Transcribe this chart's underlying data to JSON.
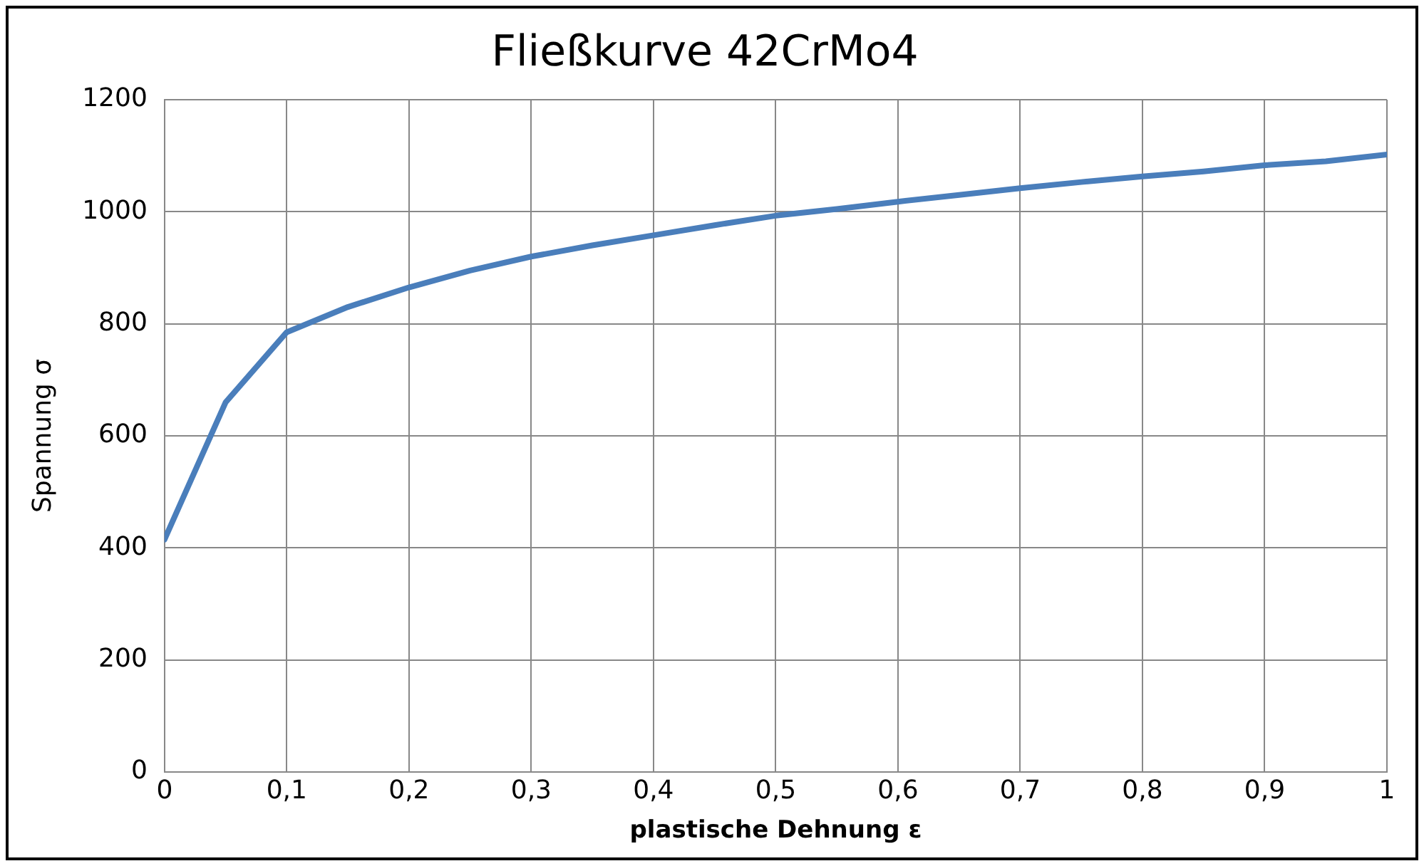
{
  "chart_data": {
    "type": "line",
    "title": "Fließkurve 42CrMo4",
    "xlabel": "plastische Dehnung ε",
    "ylabel": "Spannung σ",
    "x": [
      0,
      0.05,
      0.1,
      0.15,
      0.2,
      0.25,
      0.3,
      0.35,
      0.4,
      0.45,
      0.5,
      0.55,
      0.6,
      0.65,
      0.7,
      0.75,
      0.8,
      0.85,
      0.9,
      0.95,
      1
    ],
    "series": [
      {
        "color": "#4a7ebb",
        "values": [
          415,
          660,
          785,
          830,
          865,
          895,
          920,
          940,
          958,
          976,
          993,
          1005,
          1018,
          1030,
          1042,
          1053,
          1063,
          1072,
          1083,
          1090,
          1102
        ]
      }
    ],
    "xlim": [
      0,
      1
    ],
    "xticks": [
      0,
      {
        "value": 0.1,
        "label": "0,1"
      },
      {
        "value": 0.2,
        "label": "0,2"
      },
      {
        "value": 0.3,
        "label": "0,3"
      },
      {
        "value": 0.4,
        "label": "0,4"
      },
      {
        "value": 0.5,
        "label": "0,5"
      },
      {
        "value": 0.6,
        "label": "0,6"
      },
      {
        "value": 0.7,
        "label": "0,7"
      },
      {
        "value": 0.8,
        "label": "0,8"
      },
      {
        "value": 0.9,
        "label": "0,9"
      },
      1
    ],
    "ylim": [
      0,
      1200
    ],
    "yticks": [
      0,
      200,
      400,
      600,
      800,
      1000,
      1200
    ],
    "grid": true,
    "legend": false,
    "marker": "none",
    "line_style": "solid"
  }
}
